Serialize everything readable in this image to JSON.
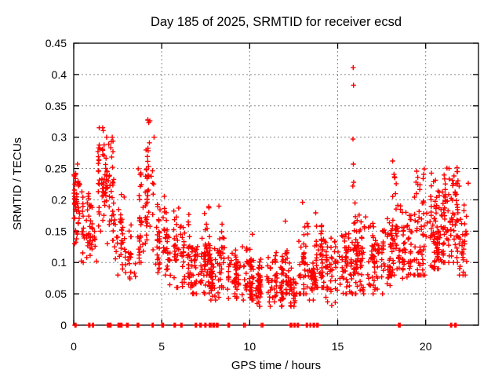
{
  "window": {
    "description": "gnuplot-style scatter plot rendered as a static image"
  },
  "chart_data": {
    "type": "scatter",
    "title": "Day 185 of 2025, SRMTID for receiver ecsd",
    "xlabel": "GPS time / hours",
    "ylabel": "SRMTID / TECUs",
    "xlim": [
      0,
      23
    ],
    "ylim": [
      0,
      0.45
    ],
    "xticks": [
      0,
      5,
      10,
      15,
      20
    ],
    "xtick_labels": [
      "0",
      "5",
      "10",
      "15",
      "20"
    ],
    "yticks": [
      0,
      0.05,
      0.1,
      0.15,
      0.2,
      0.25,
      0.3,
      0.35,
      0.4,
      0.45
    ],
    "ytick_labels": [
      "0",
      "0.05",
      "0.1",
      "0.15",
      "0.2",
      "0.25",
      "0.3",
      "0.35",
      "0.4",
      "0.45"
    ],
    "grid": true,
    "legend": "none",
    "marker": {
      "shape": "plus",
      "color": "#ff0000",
      "size": 3.2,
      "stroke_width": 1.4
    },
    "frame_color": "#000000",
    "grid_color": "#888888",
    "seed": 185,
    "clusters_legend": "each cluster = [hour_start, hour_end, point_count, y_min, y_max, y_center] in TECUs, estimated from plot density",
    "clusters": [
      [
        0.0,
        0.35,
        45,
        0.13,
        0.26,
        0.2
      ],
      [
        0.35,
        0.85,
        25,
        0.1,
        0.22,
        0.15
      ],
      [
        0.85,
        1.25,
        30,
        0.1,
        0.21,
        0.16
      ],
      [
        1.25,
        1.75,
        45,
        0.15,
        0.315,
        0.24
      ],
      [
        1.75,
        2.3,
        50,
        0.13,
        0.3,
        0.22
      ],
      [
        2.3,
        2.95,
        35,
        0.08,
        0.21,
        0.14
      ],
      [
        2.95,
        3.55,
        20,
        0.07,
        0.16,
        0.11
      ],
      [
        3.55,
        4.15,
        40,
        0.1,
        0.3,
        0.17
      ],
      [
        4.15,
        4.6,
        35,
        0.12,
        0.33,
        0.22
      ],
      [
        4.6,
        5.3,
        45,
        0.08,
        0.22,
        0.14
      ],
      [
        5.3,
        6.0,
        40,
        0.06,
        0.19,
        0.12
      ],
      [
        6.0,
        6.65,
        40,
        0.06,
        0.19,
        0.11
      ],
      [
        6.65,
        7.3,
        45,
        0.05,
        0.14,
        0.09
      ],
      [
        7.3,
        7.7,
        45,
        0.05,
        0.19,
        0.11
      ],
      [
        7.7,
        8.3,
        45,
        0.04,
        0.13,
        0.08
      ],
      [
        8.3,
        8.6,
        25,
        0.06,
        0.18,
        0.1
      ],
      [
        8.6,
        9.5,
        50,
        0.04,
        0.12,
        0.08
      ],
      [
        9.5,
        10.3,
        55,
        0.04,
        0.14,
        0.08
      ],
      [
        10.3,
        11.3,
        65,
        0.03,
        0.11,
        0.07
      ],
      [
        11.3,
        12.3,
        65,
        0.03,
        0.12,
        0.07
      ],
      [
        12.3,
        12.8,
        30,
        0.03,
        0.1,
        0.06
      ],
      [
        12.8,
        13.3,
        40,
        0.05,
        0.2,
        0.1
      ],
      [
        13.3,
        13.7,
        30,
        0.04,
        0.11,
        0.07
      ],
      [
        13.7,
        14.35,
        55,
        0.06,
        0.195,
        0.11
      ],
      [
        14.35,
        15.0,
        40,
        0.03,
        0.14,
        0.08
      ],
      [
        15.0,
        15.8,
        55,
        0.05,
        0.16,
        0.1
      ],
      [
        15.8,
        16.0,
        14,
        0.08,
        0.24,
        0.15
      ],
      [
        16.0,
        16.7,
        55,
        0.05,
        0.18,
        0.11
      ],
      [
        16.7,
        17.6,
        60,
        0.05,
        0.18,
        0.11
      ],
      [
        17.6,
        18.1,
        40,
        0.06,
        0.17,
        0.12
      ],
      [
        18.1,
        18.65,
        40,
        0.08,
        0.27,
        0.15
      ],
      [
        18.65,
        19.3,
        45,
        0.06,
        0.18,
        0.12
      ],
      [
        19.3,
        20.0,
        55,
        0.08,
        0.29,
        0.15
      ],
      [
        20.0,
        20.7,
        60,
        0.09,
        0.25,
        0.15
      ],
      [
        20.7,
        21.3,
        60,
        0.1,
        0.27,
        0.16
      ],
      [
        21.3,
        21.9,
        55,
        0.1,
        0.27,
        0.17
      ],
      [
        21.9,
        22.4,
        30,
        0.08,
        0.26,
        0.15
      ]
    ],
    "outliers": [
      [
        4.33,
        0.326
      ],
      [
        4.3,
        0.291
      ],
      [
        15.88,
        0.411
      ],
      [
        15.9,
        0.383
      ],
      [
        15.87,
        0.297
      ],
      [
        15.89,
        0.257
      ],
      [
        15.91,
        0.228
      ],
      [
        15.86,
        0.222
      ],
      [
        12.02,
        0.166
      ],
      [
        10.15,
        0.145
      ],
      [
        8.25,
        0.19
      ],
      [
        13.0,
        0.196
      ]
    ],
    "zero_marker_hours": [
      0.1,
      0.9,
      1.1,
      1.95,
      2.1,
      2.55,
      2.7,
      3.05,
      3.65,
      4.5,
      5.05,
      5.75,
      6.1,
      6.95,
      7.2,
      7.5,
      7.75,
      7.95,
      8.15,
      8.8,
      9.7,
      10.7,
      12.35,
      12.55,
      12.75,
      13.25,
      13.45,
      13.65,
      13.85,
      18.5,
      21.45,
      21.7
    ]
  }
}
